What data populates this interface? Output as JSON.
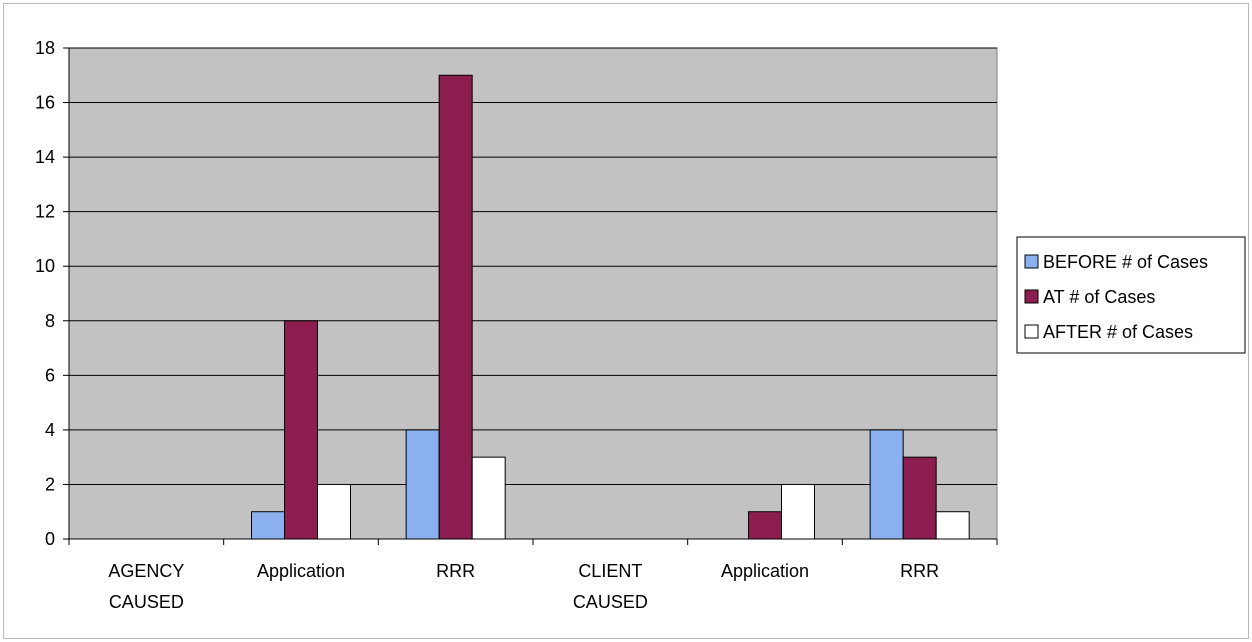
{
  "chart_data": {
    "type": "bar",
    "title": "",
    "xlabel": "",
    "ylabel": "",
    "ylim": [
      0,
      18
    ],
    "yticks": [
      0,
      2,
      4,
      6,
      8,
      10,
      12,
      14,
      16,
      18
    ],
    "grid": true,
    "legend_position": "right",
    "categories": [
      [
        "AGENCY",
        "CAUSED"
      ],
      [
        "Application"
      ],
      [
        "RRR"
      ],
      [
        "CLIENT",
        "CAUSED"
      ],
      [
        "Application"
      ],
      [
        "RRR"
      ]
    ],
    "series": [
      {
        "name": "BEFORE # of Cases",
        "color": "#8ab0f0",
        "values": [
          0,
          1,
          4,
          0,
          0,
          4
        ]
      },
      {
        "name": "AT # of Cases",
        "color": "#8b1e4e",
        "values": [
          0,
          8,
          17,
          0,
          1,
          3
        ]
      },
      {
        "name": "AFTER # of Cases",
        "color": "#ffffff",
        "values": [
          0,
          2,
          3,
          0,
          2,
          1
        ]
      }
    ],
    "plot_background": "#c2c2c2"
  }
}
